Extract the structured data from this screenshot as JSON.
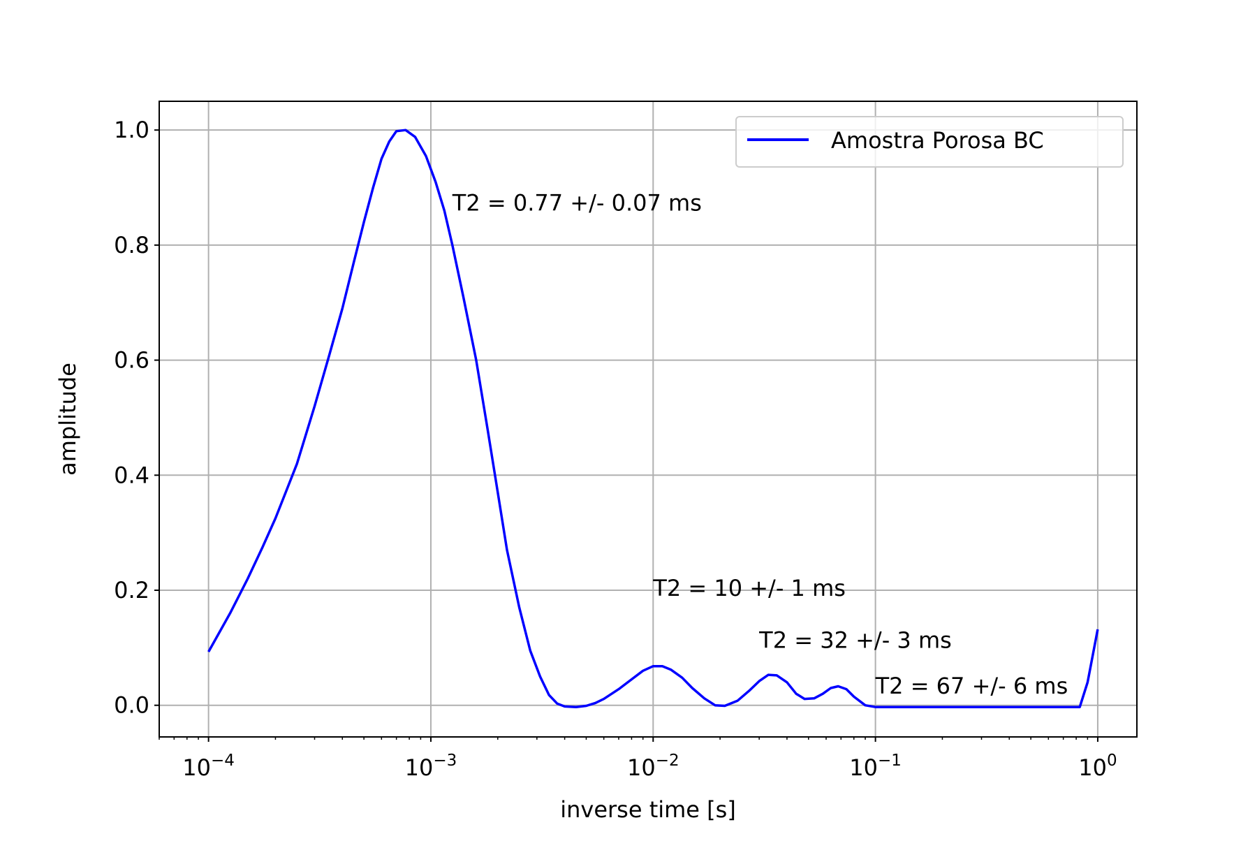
{
  "chart_data": {
    "type": "line",
    "title": "",
    "xlabel": "inverse time [s]",
    "ylabel": "amplitude",
    "x_scale": "log",
    "xlim": [
      6e-05,
      1.5
    ],
    "ylim": [
      -0.055,
      1.05
    ],
    "grid": true,
    "legend_position": "top-right",
    "x_ticks": [
      {
        "value": 0.0001,
        "base": "10",
        "exponent": "−4"
      },
      {
        "value": 0.001,
        "base": "10",
        "exponent": "−3"
      },
      {
        "value": 0.01,
        "base": "10",
        "exponent": "−2"
      },
      {
        "value": 0.1,
        "base": "10",
        "exponent": "−1"
      },
      {
        "value": 1,
        "base": "10",
        "exponent": "0"
      }
    ],
    "y_ticks": [
      {
        "value": 0.0,
        "label": "0.0"
      },
      {
        "value": 0.2,
        "label": "0.2"
      },
      {
        "value": 0.4,
        "label": "0.4"
      },
      {
        "value": 0.6,
        "label": "0.6"
      },
      {
        "value": 0.8,
        "label": "0.8"
      },
      {
        "value": 1.0,
        "label": "1.0"
      }
    ],
    "series": [
      {
        "name": "Amostra Porosa BC",
        "color": "#0000ff",
        "x": [
          0.0001,
          0.000125,
          0.00015,
          0.000175,
          0.0002,
          0.000225,
          0.00025,
          0.0003,
          0.00035,
          0.0004,
          0.00045,
          0.0005,
          0.00055,
          0.0006,
          0.00065,
          0.0007,
          0.00077,
          0.00085,
          0.00095,
          0.00105,
          0.00115,
          0.00125,
          0.0014,
          0.0016,
          0.0018,
          0.002,
          0.0022,
          0.0025,
          0.0028,
          0.0031,
          0.0034,
          0.0037,
          0.004,
          0.0045,
          0.005,
          0.0055,
          0.006,
          0.007,
          0.008,
          0.009,
          0.01,
          0.011,
          0.012,
          0.0135,
          0.015,
          0.017,
          0.019,
          0.021,
          0.024,
          0.027,
          0.03,
          0.033,
          0.036,
          0.04,
          0.044,
          0.048,
          0.053,
          0.058,
          0.063,
          0.068,
          0.074,
          0.08,
          0.09,
          0.1,
          0.2,
          0.4,
          0.6,
          0.83,
          0.9,
          1.0
        ],
        "y": [
          0.093,
          0.16,
          0.22,
          0.275,
          0.325,
          0.375,
          0.42,
          0.52,
          0.61,
          0.69,
          0.77,
          0.84,
          0.9,
          0.95,
          0.98,
          0.998,
          1.0,
          0.988,
          0.955,
          0.91,
          0.86,
          0.8,
          0.71,
          0.6,
          0.48,
          0.37,
          0.27,
          0.17,
          0.095,
          0.05,
          0.018,
          0.003,
          -0.002,
          -0.003,
          -0.001,
          0.004,
          0.011,
          0.028,
          0.045,
          0.06,
          0.068,
          0.068,
          0.062,
          0.048,
          0.03,
          0.012,
          0.0,
          -0.001,
          0.008,
          0.025,
          0.042,
          0.053,
          0.052,
          0.04,
          0.02,
          0.011,
          0.012,
          0.02,
          0.03,
          0.033,
          0.028,
          0.015,
          0.0,
          -0.003,
          -0.003,
          -0.003,
          -0.003,
          -0.003,
          0.04,
          0.132
        ]
      }
    ],
    "annotations": [
      {
        "text": "T2 = 0.77 +/- 0.07 ms",
        "x": 0.00125,
        "y": 0.86
      },
      {
        "text": "T2 = 10 +/- 1 ms",
        "x": 0.01,
        "y": 0.19
      },
      {
        "text": "T2 = 32 +/- 3 ms",
        "x": 0.03,
        "y": 0.1
      },
      {
        "text": "T2 = 67 +/- 6 ms",
        "x": 0.1,
        "y": 0.02
      }
    ]
  }
}
